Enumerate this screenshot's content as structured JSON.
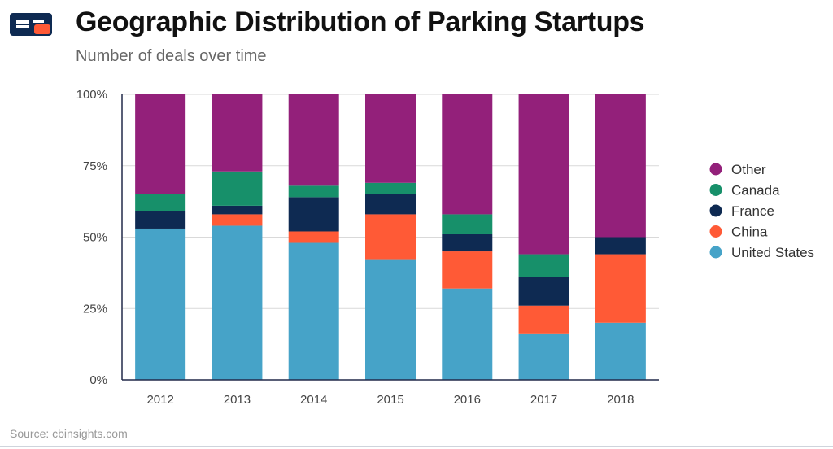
{
  "header": {
    "title": "Geographic Distribution of Parking Startups",
    "subtitle": "Number of deals over time"
  },
  "footer": {
    "source": "Source: cbinsights.com"
  },
  "colors": {
    "logo_navy": "#0e2a52",
    "logo_orange": "#ff5a36",
    "axis": "#222a4a",
    "grid": "#d9d9d9"
  },
  "icons": {
    "logo": "cb-insights-logo-icon"
  },
  "chart_data": {
    "type": "bar",
    "stacked": true,
    "percent": true,
    "categories": [
      "2012",
      "2013",
      "2014",
      "2015",
      "2016",
      "2017",
      "2018"
    ],
    "ylim": [
      0,
      100
    ],
    "yticks": [
      0,
      25,
      50,
      75,
      100
    ],
    "ytick_labels": [
      "0%",
      "25%",
      "50%",
      "75%",
      "100%"
    ],
    "grid": true,
    "legend_position": "right",
    "series": [
      {
        "name": "United States",
        "color": "#46a3c8",
        "values": [
          53,
          54,
          48,
          42,
          32,
          16,
          20
        ]
      },
      {
        "name": "China",
        "color": "#ff5a36",
        "values": [
          0,
          4,
          4,
          16,
          13,
          10,
          24
        ]
      },
      {
        "name": "France",
        "color": "#0e2a52",
        "values": [
          6,
          3,
          12,
          7,
          6,
          10,
          6
        ]
      },
      {
        "name": "Canada",
        "color": "#17906a",
        "values": [
          6,
          12,
          4,
          4,
          7,
          8,
          0
        ]
      },
      {
        "name": "Other",
        "color": "#93207a",
        "values": [
          35,
          27,
          32,
          31,
          42,
          56,
          50
        ]
      }
    ],
    "legend_order": [
      "Other",
      "Canada",
      "France",
      "China",
      "United States"
    ]
  }
}
